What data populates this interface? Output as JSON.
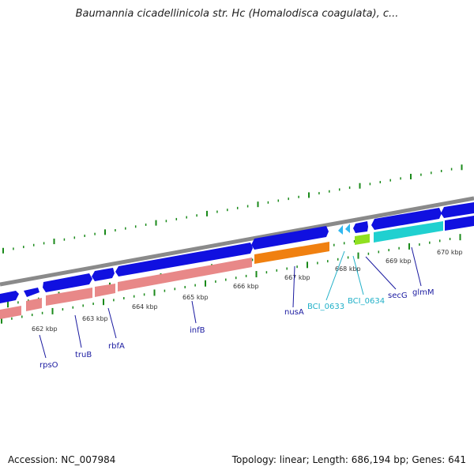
{
  "header": {
    "title": "Baumannia cicadellinicola str. Hc (Homalodisca coagulata), c..."
  },
  "footer": {
    "accession": "Accession: NC_007984",
    "summary": "Topology: linear; Length: 686,194 bp; Genes: 641"
  },
  "colors": {
    "backbone": "#8a8a8a",
    "forward_gene": "#1010e0",
    "reverse_gene_pink": "#e88888",
    "reverse_gene_orange": "#f08010",
    "reverse_gene_cyan": "#20d0d0",
    "reverse_gene_lime": "#90e020",
    "small_cyan": "#30b8f0",
    "tick": "#1a8a1a",
    "label_blue": "#1a1aa0",
    "label_cyan": "#20b0c8"
  },
  "scale": {
    "tick_labels": [
      "662 kbp",
      "663 kbp",
      "664 kbp",
      "665 kbp",
      "666 kbp",
      "667 kbp",
      "668 kbp",
      "669 kbp",
      "670 kbp"
    ]
  },
  "gene_labels": [
    {
      "name": "rpsO",
      "style": "blue"
    },
    {
      "name": "truB",
      "style": "blue"
    },
    {
      "name": "rbfA",
      "style": "blue"
    },
    {
      "name": "infB",
      "style": "blue"
    },
    {
      "name": "nusA",
      "style": "blue"
    },
    {
      "name": "BCI_0633",
      "style": "cyan"
    },
    {
      "name": "BCI_0634",
      "style": "cyan"
    },
    {
      "name": "secG",
      "style": "blue"
    },
    {
      "name": "glmM",
      "style": "blue"
    }
  ]
}
